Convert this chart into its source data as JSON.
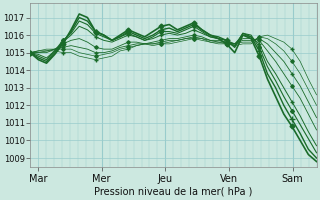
{
  "bg_color": "#cce8e0",
  "grid_color": "#99cccc",
  "line_color": "#1a6b2a",
  "xlabel": "Pression niveau de la mer( hPa )",
  "xlim": [
    0,
    108
  ],
  "ylim": [
    1008.5,
    1017.8
  ],
  "yticks": [
    1009,
    1010,
    1011,
    1012,
    1013,
    1014,
    1015,
    1016,
    1017
  ],
  "day_ticks": [
    3,
    27,
    51,
    75,
    99
  ],
  "day_labels": [
    "Mar",
    "Mer",
    "Jeu",
    "Ven",
    "Sam"
  ],
  "series": [
    [
      1015.0,
      1014.6,
      1014.4,
      1014.9,
      1015.5,
      1016.3,
      1017.2,
      1017.0,
      1016.2,
      1016.0,
      1015.7,
      1016.0,
      1016.3,
      1016.1,
      1015.9,
      1016.2,
      1016.5,
      1016.6,
      1016.3,
      1016.5,
      1016.7,
      1016.3,
      1016.0,
      1015.8,
      1015.5,
      1015.0,
      1016.0,
      1015.8,
      1014.8,
      1013.5,
      1012.5,
      1011.5,
      1010.8,
      1010.0,
      1009.2,
      1008.8
    ],
    [
      1015.0,
      1014.7,
      1014.5,
      1015.0,
      1015.6,
      1016.2,
      1017.0,
      1016.8,
      1016.2,
      1016.0,
      1015.7,
      1015.9,
      1016.2,
      1016.0,
      1015.8,
      1016.0,
      1016.3,
      1016.4,
      1016.2,
      1016.4,
      1016.6,
      1016.3,
      1016.0,
      1015.9,
      1015.7,
      1015.3,
      1016.1,
      1015.9,
      1015.1,
      1013.8,
      1013.0,
      1012.0,
      1011.2,
      1010.4,
      1009.5,
      1009.0
    ],
    [
      1015.0,
      1014.8,
      1014.6,
      1015.1,
      1015.7,
      1016.1,
      1016.8,
      1016.6,
      1016.1,
      1015.9,
      1015.7,
      1015.9,
      1016.1,
      1015.9,
      1015.7,
      1015.9,
      1016.2,
      1016.2,
      1016.1,
      1016.3,
      1016.5,
      1016.2,
      1015.9,
      1015.8,
      1015.7,
      1015.4,
      1016.1,
      1016.0,
      1015.3,
      1014.2,
      1013.4,
      1012.5,
      1011.7,
      1010.9,
      1010.1,
      1009.3
    ],
    [
      1015.0,
      1014.9,
      1014.7,
      1015.1,
      1015.6,
      1016.0,
      1016.5,
      1016.3,
      1015.9,
      1015.7,
      1015.6,
      1015.8,
      1016.0,
      1015.9,
      1015.7,
      1015.8,
      1016.0,
      1016.1,
      1016.0,
      1016.1,
      1016.3,
      1016.1,
      1015.9,
      1015.8,
      1015.7,
      1015.5,
      1016.0,
      1015.9,
      1015.5,
      1014.5,
      1013.8,
      1013.0,
      1012.2,
      1011.4,
      1010.5,
      1009.7
    ],
    [
      1015.0,
      1015.0,
      1015.0,
      1015.2,
      1015.5,
      1015.7,
      1015.8,
      1015.6,
      1015.3,
      1015.2,
      1015.2,
      1015.4,
      1015.6,
      1015.6,
      1015.5,
      1015.6,
      1015.7,
      1015.8,
      1015.8,
      1015.9,
      1016.0,
      1015.9,
      1015.7,
      1015.7,
      1015.6,
      1015.5,
      1015.8,
      1015.8,
      1015.7,
      1015.1,
      1014.5,
      1013.8,
      1013.1,
      1012.4,
      1011.5,
      1010.6
    ],
    [
      1015.0,
      1015.1,
      1015.1,
      1015.2,
      1015.3,
      1015.4,
      1015.3,
      1015.2,
      1015.0,
      1015.0,
      1015.1,
      1015.3,
      1015.4,
      1015.5,
      1015.5,
      1015.5,
      1015.6,
      1015.7,
      1015.7,
      1015.8,
      1015.9,
      1015.8,
      1015.7,
      1015.6,
      1015.6,
      1015.5,
      1015.7,
      1015.7,
      1015.8,
      1015.5,
      1015.0,
      1014.5,
      1013.8,
      1013.1,
      1012.2,
      1011.3
    ],
    [
      1015.0,
      1015.1,
      1015.2,
      1015.2,
      1015.2,
      1015.2,
      1015.0,
      1014.9,
      1014.8,
      1014.9,
      1015.0,
      1015.2,
      1015.3,
      1015.4,
      1015.5,
      1015.5,
      1015.5,
      1015.6,
      1015.7,
      1015.8,
      1015.8,
      1015.8,
      1015.6,
      1015.6,
      1015.5,
      1015.5,
      1015.6,
      1015.6,
      1015.9,
      1015.8,
      1015.5,
      1015.1,
      1014.5,
      1013.8,
      1012.9,
      1012.0
    ],
    [
      1015.0,
      1015.0,
      1015.1,
      1015.1,
      1015.0,
      1015.0,
      1014.8,
      1014.7,
      1014.6,
      1014.7,
      1014.8,
      1015.1,
      1015.2,
      1015.4,
      1015.5,
      1015.4,
      1015.5,
      1015.5,
      1015.6,
      1015.7,
      1015.8,
      1015.7,
      1015.6,
      1015.5,
      1015.5,
      1015.4,
      1015.5,
      1015.5,
      1015.9,
      1016.0,
      1015.8,
      1015.6,
      1015.2,
      1014.5,
      1013.5,
      1012.6
    ]
  ],
  "markers": [
    {
      "style": "D",
      "size": 2.5,
      "every": 4
    },
    {
      "style": "+",
      "size": 4,
      "every": 4
    },
    {
      "style": "D",
      "size": 2.0,
      "every": 4
    },
    {
      "style": "+",
      "size": 3,
      "every": 4
    },
    {
      "style": "D",
      "size": 1.8,
      "every": 4
    },
    {
      "style": "+",
      "size": 3,
      "every": 4
    },
    {
      "style": "D",
      "size": 1.8,
      "every": 4
    },
    {
      "style": "+",
      "size": 3,
      "every": 4
    }
  ],
  "linewidths": [
    1.2,
    1.0,
    0.8,
    0.7,
    0.6,
    0.6,
    0.5,
    0.5
  ]
}
